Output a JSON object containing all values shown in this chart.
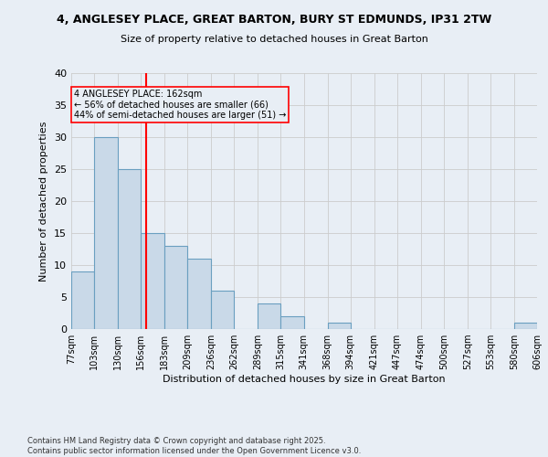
{
  "title_line1": "4, ANGLESEY PLACE, GREAT BARTON, BURY ST EDMUNDS, IP31 2TW",
  "title_line2": "Size of property relative to detached houses in Great Barton",
  "xlabel": "Distribution of detached houses by size in Great Barton",
  "ylabel": "Number of detached properties",
  "bar_edges": [
    77,
    103,
    130,
    156,
    183,
    209,
    236,
    262,
    289,
    315,
    341,
    368,
    394,
    421,
    447,
    474,
    500,
    527,
    553,
    580,
    606
  ],
  "bar_heights": [
    9,
    30,
    25,
    15,
    13,
    11,
    6,
    0,
    4,
    2,
    0,
    1,
    0,
    0,
    0,
    0,
    0,
    0,
    0,
    1
  ],
  "bar_color": "#c9d9e8",
  "bar_edge_color": "#6a9fc0",
  "vline_x": 162,
  "vline_color": "red",
  "annotation_text": "4 ANGLESEY PLACE: 162sqm\n← 56% of detached houses are smaller (66)\n44% of semi-detached houses are larger (51) →",
  "annotation_box_color": "red",
  "ylim": [
    0,
    40
  ],
  "yticks": [
    0,
    5,
    10,
    15,
    20,
    25,
    30,
    35,
    40
  ],
  "grid_color": "#cccccc",
  "bg_color": "#e8eef5",
  "footnote": "Contains HM Land Registry data © Crown copyright and database right 2025.\nContains public sector information licensed under the Open Government Licence v3.0."
}
